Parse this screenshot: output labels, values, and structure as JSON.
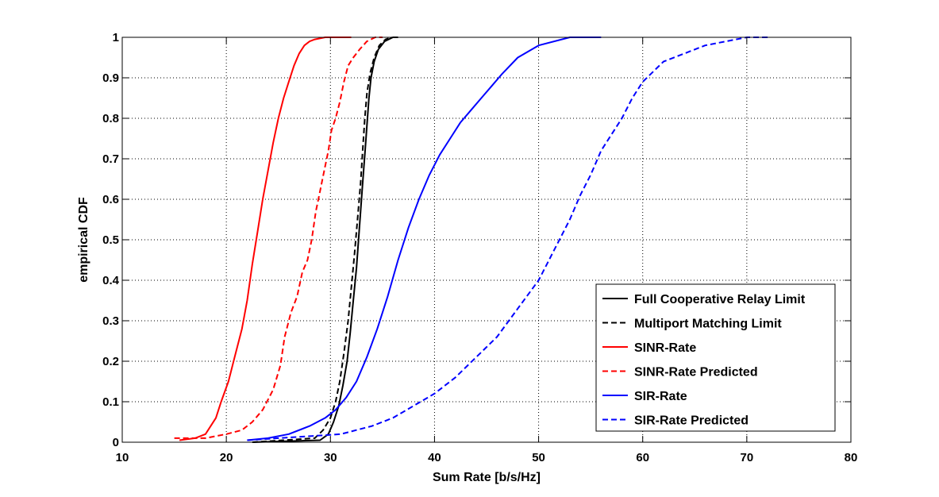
{
  "chart_data": {
    "type": "line",
    "title": "",
    "xlabel": "Sum Rate [b/s/Hz]",
    "ylabel": "empirical CDF",
    "xlim": [
      10,
      80
    ],
    "ylim": [
      0,
      1
    ],
    "xticks": [
      10,
      20,
      30,
      40,
      50,
      60,
      70,
      80
    ],
    "yticks": [
      0,
      0.1,
      0.2,
      0.3,
      0.4,
      0.5,
      0.6,
      0.7,
      0.8,
      0.9,
      1
    ],
    "xtick_labels": [
      "10",
      "20",
      "30",
      "40",
      "50",
      "60",
      "70",
      "80"
    ],
    "ytick_labels": [
      "0",
      "0.1",
      "0.2",
      "0.3",
      "0.4",
      "0.5",
      "0.6",
      "0.7",
      "0.8",
      "0.9",
      "1"
    ],
    "grid": true,
    "legend_position": "bottom-right",
    "series": [
      {
        "name": "Full Cooperative Relay Limit",
        "color": "#000000",
        "dash": "solid",
        "x": [
          22.5,
          29.0,
          29.8,
          30.3,
          30.8,
          31.2,
          31.6,
          31.9,
          32.2,
          32.5,
          32.7,
          32.9,
          33.1,
          33.3,
          33.5,
          33.7,
          33.9,
          34.2,
          34.6,
          35.2,
          36.0,
          36.5
        ],
        "y": [
          0.0,
          0.005,
          0.02,
          0.05,
          0.09,
          0.14,
          0.2,
          0.27,
          0.35,
          0.43,
          0.5,
          0.57,
          0.64,
          0.71,
          0.78,
          0.85,
          0.9,
          0.94,
          0.97,
          0.99,
          1.0,
          1.0
        ]
      },
      {
        "name": "Multiport Matching Limit",
        "color": "#000000",
        "dash": "dashed",
        "x": [
          22.5,
          28.5,
          29.3,
          30.0,
          30.5,
          30.9,
          31.3,
          31.7,
          32.0,
          32.3,
          32.6,
          32.9,
          33.1,
          33.3,
          33.5,
          33.8,
          34.2,
          34.7,
          35.3,
          35.9
        ],
        "y": [
          0.0,
          0.01,
          0.03,
          0.06,
          0.1,
          0.15,
          0.22,
          0.3,
          0.38,
          0.46,
          0.55,
          0.64,
          0.72,
          0.8,
          0.86,
          0.91,
          0.95,
          0.98,
          0.995,
          1.0
        ]
      },
      {
        "name": "SINR-Rate",
        "color": "#ff0000",
        "dash": "solid",
        "x": [
          15.5,
          17.0,
          18.0,
          19.0,
          19.5,
          20.2,
          20.8,
          21.5,
          22.0,
          22.5,
          23.0,
          23.5,
          24.0,
          24.5,
          25.0,
          25.5,
          26.0,
          26.5,
          27.0,
          27.5,
          28.0,
          28.5,
          29.5,
          31.0,
          32.0
        ],
        "y": [
          0.005,
          0.01,
          0.02,
          0.06,
          0.1,
          0.15,
          0.21,
          0.28,
          0.35,
          0.44,
          0.52,
          0.6,
          0.67,
          0.74,
          0.8,
          0.85,
          0.89,
          0.93,
          0.96,
          0.98,
          0.99,
          0.995,
          1.0,
          1.0,
          1.0
        ]
      },
      {
        "name": "SINR-Rate Predicted",
        "color": "#ff0000",
        "dash": "dashed",
        "x": [
          15.0,
          18.0,
          20.0,
          21.5,
          22.5,
          23.5,
          24.5,
          25.2,
          25.6,
          26.2,
          26.8,
          27.3,
          27.8,
          28.2,
          28.6,
          29.0,
          29.4,
          29.8,
          30.1,
          30.5,
          30.9,
          31.3,
          31.7,
          32.2,
          32.8,
          33.5,
          34.3,
          35.0
        ],
        "y": [
          0.01,
          0.01,
          0.02,
          0.03,
          0.05,
          0.08,
          0.13,
          0.19,
          0.26,
          0.32,
          0.36,
          0.42,
          0.45,
          0.5,
          0.57,
          0.62,
          0.67,
          0.72,
          0.77,
          0.8,
          0.84,
          0.89,
          0.93,
          0.95,
          0.97,
          0.99,
          1.0,
          1.0
        ]
      },
      {
        "name": "SIR-Rate",
        "color": "#0000ff",
        "dash": "solid",
        "x": [
          22.0,
          24.0,
          26.0,
          28.0,
          29.5,
          30.5,
          31.5,
          32.5,
          33.5,
          34.5,
          35.5,
          36.5,
          37.5,
          38.5,
          39.5,
          40.5,
          41.5,
          42.5,
          43.5,
          44.5,
          45.5,
          46.5,
          48.0,
          50.0,
          53.0,
          56.0
        ],
        "y": [
          0.005,
          0.01,
          0.02,
          0.04,
          0.06,
          0.08,
          0.11,
          0.15,
          0.21,
          0.28,
          0.36,
          0.45,
          0.53,
          0.6,
          0.66,
          0.71,
          0.75,
          0.79,
          0.82,
          0.85,
          0.88,
          0.91,
          0.95,
          0.98,
          1.0,
          1.0
        ]
      },
      {
        "name": "SIR-Rate Predicted",
        "color": "#0000ff",
        "dash": "dashed",
        "x": [
          22.0,
          25.0,
          28.0,
          31.0,
          34.0,
          36.0,
          38.0,
          40.0,
          42.0,
          44.0,
          46.0,
          48.0,
          50.0,
          51.0,
          52.0,
          53.0,
          54.0,
          55.0,
          56.0,
          57.0,
          58.0,
          59.0,
          60.0,
          62.0,
          64.0,
          66.0,
          68.0,
          70.0,
          72.0
        ],
        "y": [
          0.005,
          0.01,
          0.015,
          0.02,
          0.04,
          0.06,
          0.09,
          0.12,
          0.16,
          0.21,
          0.26,
          0.33,
          0.4,
          0.45,
          0.5,
          0.55,
          0.61,
          0.66,
          0.72,
          0.76,
          0.8,
          0.85,
          0.89,
          0.94,
          0.96,
          0.98,
          0.99,
          1.0,
          1.0
        ]
      }
    ]
  }
}
